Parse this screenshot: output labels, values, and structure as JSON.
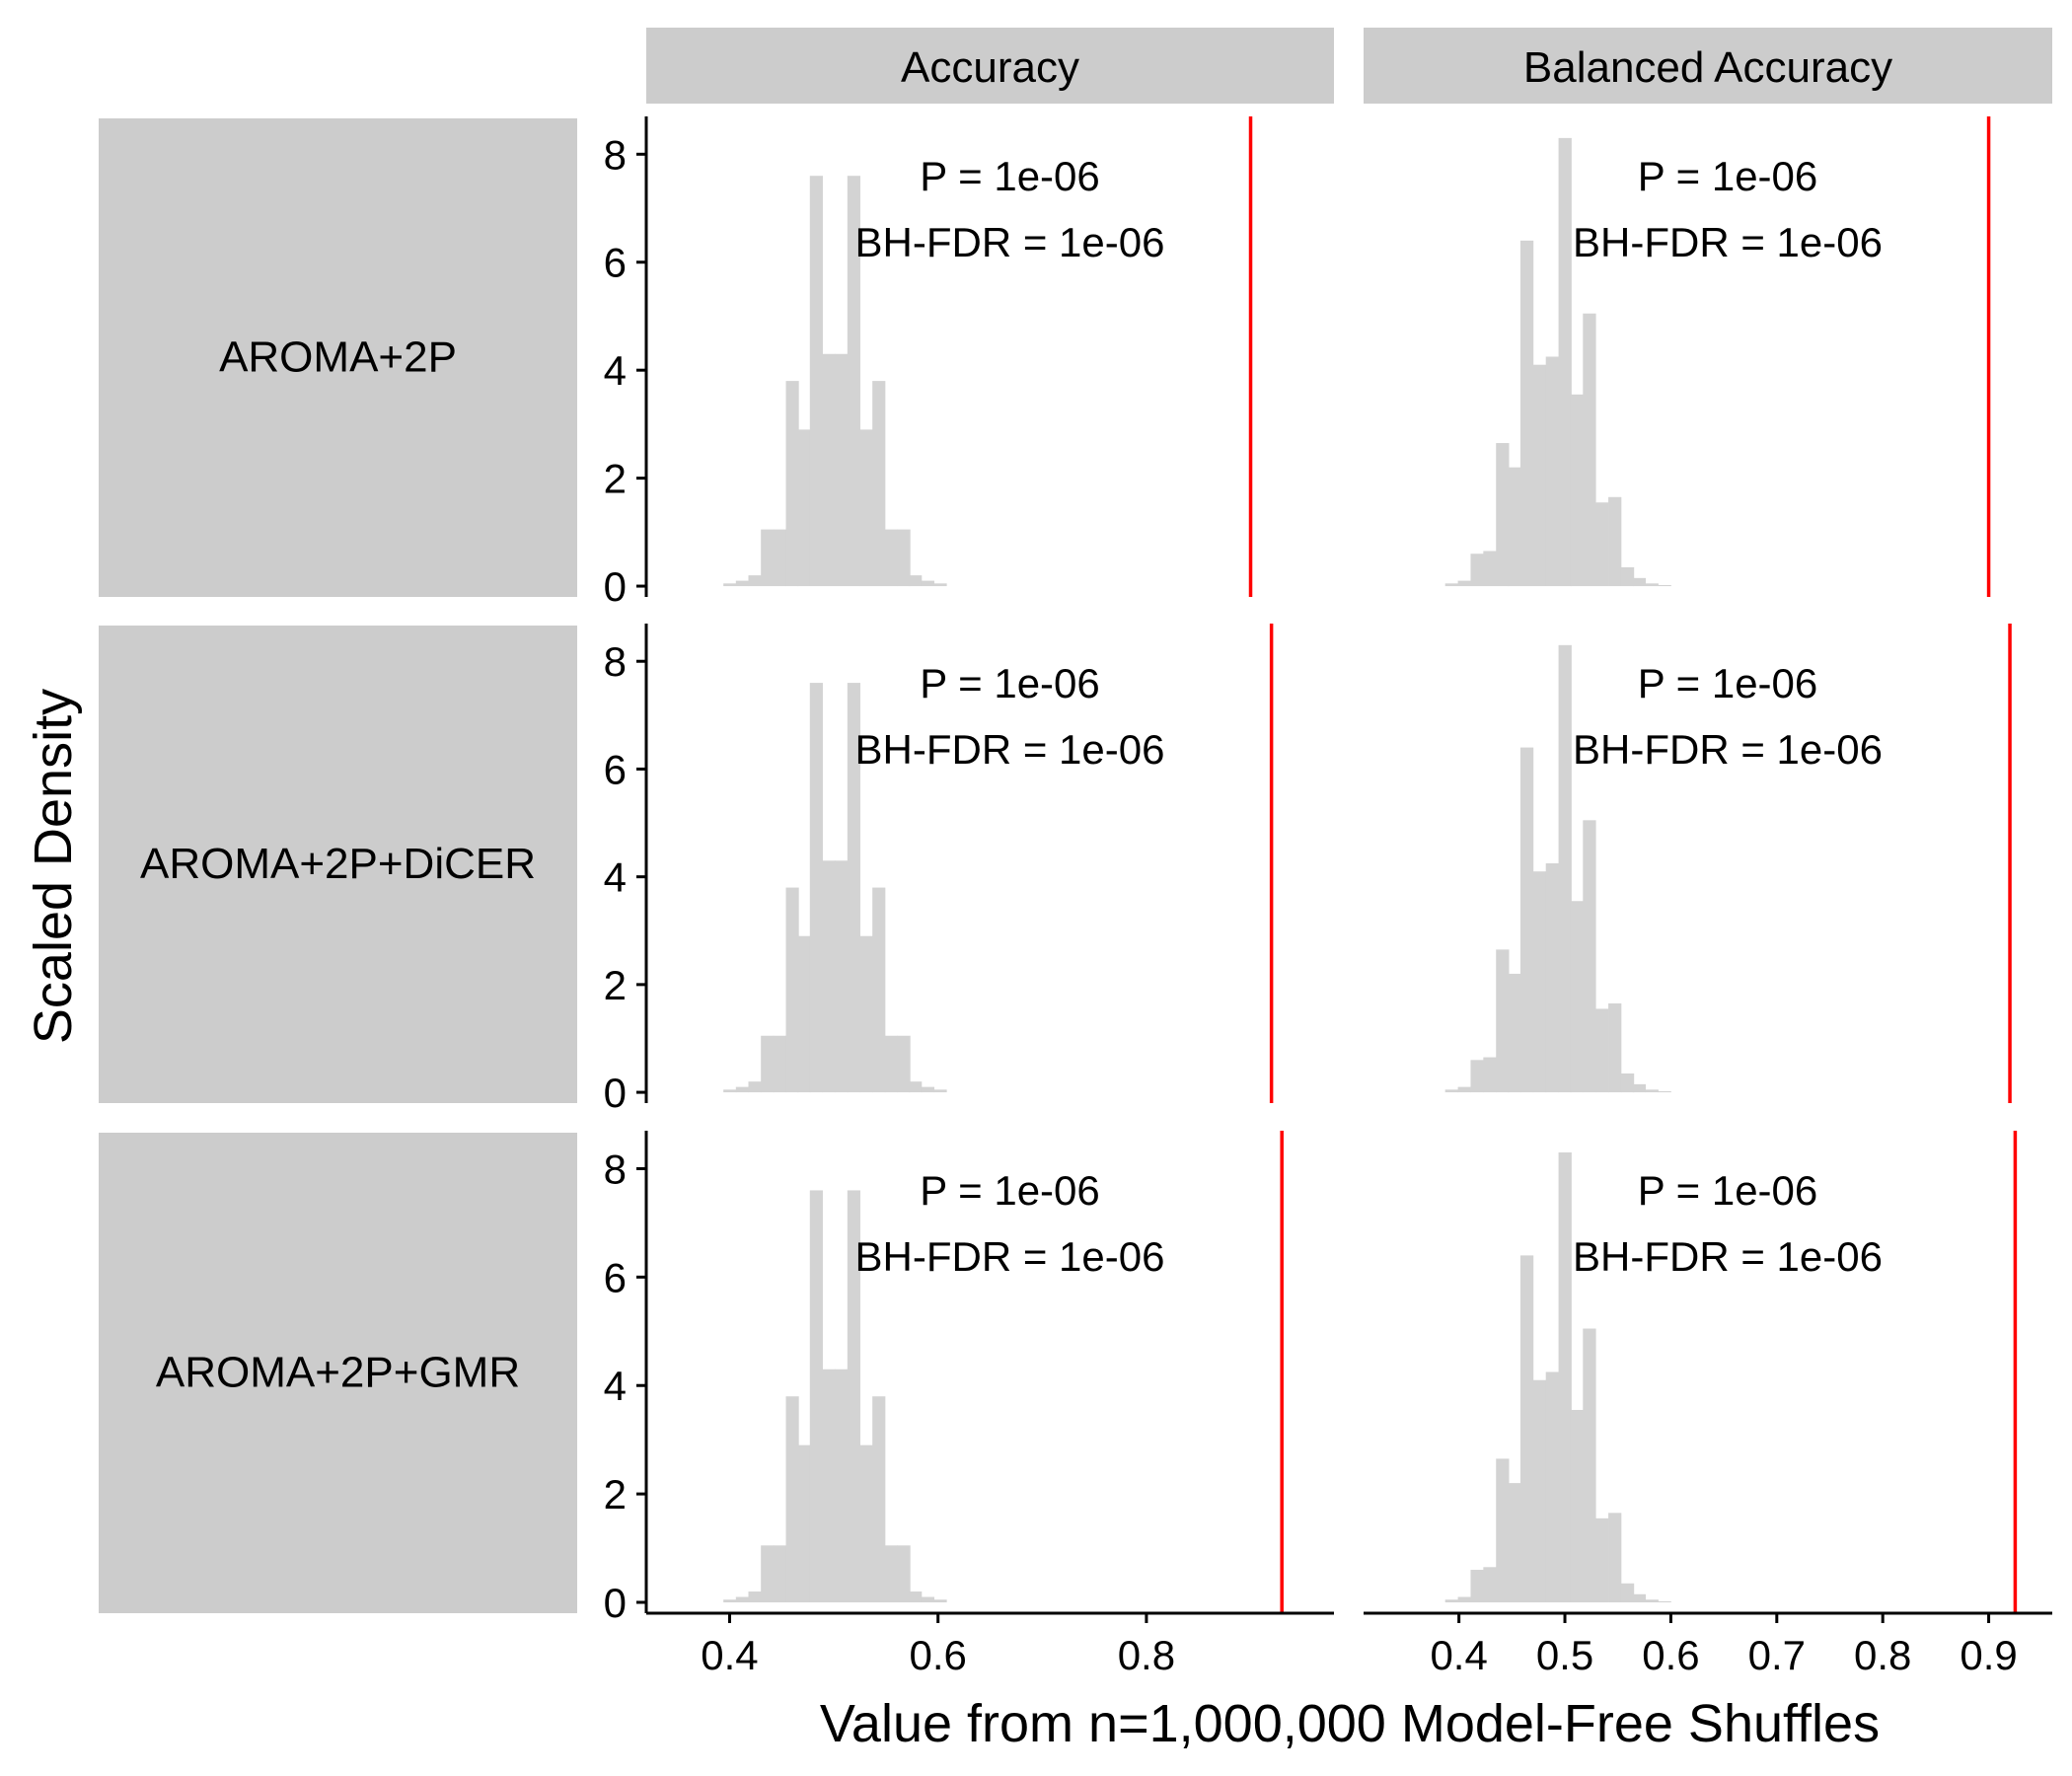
{
  "chart_data": {
    "type": "histogram",
    "xlabel": "Value from n=1,000,000 Model-Free Shuffles",
    "ylabel": "Scaled Density",
    "columns": [
      "Accuracy",
      "Balanced Accuracy"
    ],
    "rows": [
      "AROMA+2P",
      "AROMA+2P+DiCER",
      "AROMA+2P+GMR"
    ],
    "y_ticks": [
      0,
      2,
      4,
      6,
      8
    ],
    "ylim": [
      -0.2,
      8.7
    ],
    "bar_color": "#d3d3d3",
    "ref_line_color": "#ff0000",
    "x_axes": [
      {
        "column": "Accuracy",
        "xlim": [
          0.32,
          0.98
        ],
        "ticks": [
          0.4,
          0.6,
          0.8
        ],
        "tick_labels": [
          "0.4",
          "0.6",
          "0.8"
        ]
      },
      {
        "column": "Balanced Accuracy",
        "xlim": [
          0.31,
          0.96
        ],
        "ticks": [
          0.4,
          0.5,
          0.6,
          0.7,
          0.8,
          0.9
        ],
        "tick_labels": [
          "0.4",
          "0.5",
          "0.6",
          "0.7",
          "0.8",
          "0.9"
        ]
      }
    ],
    "panels": [
      {
        "row": "AROMA+2P",
        "column": "Accuracy",
        "bin_width": 0.0119,
        "bin_starts": [
          0.394,
          0.406,
          0.418,
          0.43,
          0.442,
          0.454,
          0.465,
          0.477,
          0.489,
          0.501,
          0.513,
          0.525,
          0.537,
          0.549,
          0.561,
          0.572,
          0.584,
          0.596
        ],
        "densities": [
          0.05,
          0.1,
          0.2,
          1.05,
          1.05,
          3.8,
          2.9,
          7.6,
          4.3,
          4.3,
          7.6,
          2.9,
          3.8,
          1.05,
          1.05,
          0.2,
          0.1,
          0.05
        ],
        "ref_value": 0.9,
        "p_label": "P = 1e-06",
        "fdr_label": "BH-FDR = 1e-06"
      },
      {
        "row": "AROMA+2P",
        "column": "Balanced Accuracy",
        "bin_width": 0.0118,
        "bin_starts": [
          0.387,
          0.399,
          0.411,
          0.423,
          0.435,
          0.446,
          0.458,
          0.47,
          0.482,
          0.494,
          0.505,
          0.517,
          0.529,
          0.541,
          0.553,
          0.564,
          0.576,
          0.588
        ],
        "densities": [
          0.05,
          0.1,
          0.6,
          0.65,
          2.65,
          2.2,
          6.4,
          4.1,
          4.25,
          8.3,
          3.55,
          5.05,
          1.55,
          1.65,
          0.35,
          0.15,
          0.05,
          0.02
        ],
        "ref_value": 0.9,
        "p_label": "P = 1e-06",
        "fdr_label": "BH-FDR = 1e-06"
      },
      {
        "row": "AROMA+2P+DiCER",
        "column": "Accuracy",
        "bin_width": 0.0119,
        "bin_starts": [
          0.394,
          0.406,
          0.418,
          0.43,
          0.442,
          0.454,
          0.465,
          0.477,
          0.489,
          0.501,
          0.513,
          0.525,
          0.537,
          0.549,
          0.561,
          0.572,
          0.584,
          0.596
        ],
        "densities": [
          0.05,
          0.1,
          0.2,
          1.05,
          1.05,
          3.8,
          2.9,
          7.6,
          4.3,
          4.3,
          7.6,
          2.9,
          3.8,
          1.05,
          1.05,
          0.2,
          0.1,
          0.05
        ],
        "ref_value": 0.92,
        "p_label": "P = 1e-06",
        "fdr_label": "BH-FDR = 1e-06"
      },
      {
        "row": "AROMA+2P+DiCER",
        "column": "Balanced Accuracy",
        "bin_width": 0.0118,
        "bin_starts": [
          0.387,
          0.399,
          0.411,
          0.423,
          0.435,
          0.446,
          0.458,
          0.47,
          0.482,
          0.494,
          0.505,
          0.517,
          0.529,
          0.541,
          0.553,
          0.564,
          0.576,
          0.588
        ],
        "densities": [
          0.05,
          0.1,
          0.6,
          0.65,
          2.65,
          2.2,
          6.4,
          4.1,
          4.25,
          8.3,
          3.55,
          5.05,
          1.55,
          1.65,
          0.35,
          0.15,
          0.05,
          0.02
        ],
        "ref_value": 0.92,
        "p_label": "P = 1e-06",
        "fdr_label": "BH-FDR = 1e-06"
      },
      {
        "row": "AROMA+2P+GMR",
        "column": "Accuracy",
        "bin_width": 0.0119,
        "bin_starts": [
          0.394,
          0.406,
          0.418,
          0.43,
          0.442,
          0.454,
          0.465,
          0.477,
          0.489,
          0.501,
          0.513,
          0.525,
          0.537,
          0.549,
          0.561,
          0.572,
          0.584,
          0.596
        ],
        "densities": [
          0.05,
          0.1,
          0.2,
          1.05,
          1.05,
          3.8,
          2.9,
          7.6,
          4.3,
          4.3,
          7.6,
          2.9,
          3.8,
          1.05,
          1.05,
          0.2,
          0.1,
          0.05
        ],
        "ref_value": 0.93,
        "p_label": "P = 1e-06",
        "fdr_label": "BH-FDR = 1e-06"
      },
      {
        "row": "AROMA+2P+GMR",
        "column": "Balanced Accuracy",
        "bin_width": 0.0118,
        "bin_starts": [
          0.387,
          0.399,
          0.411,
          0.423,
          0.435,
          0.446,
          0.458,
          0.47,
          0.482,
          0.494,
          0.505,
          0.517,
          0.529,
          0.541,
          0.553,
          0.564,
          0.576,
          0.588
        ],
        "densities": [
          0.05,
          0.1,
          0.6,
          0.65,
          2.65,
          2.2,
          6.4,
          4.1,
          4.25,
          8.3,
          3.55,
          5.05,
          1.55,
          1.65,
          0.35,
          0.15,
          0.05,
          0.02
        ],
        "ref_value": 0.925,
        "p_label": "P = 1e-06",
        "fdr_label": "BH-FDR = 1e-06"
      }
    ]
  }
}
